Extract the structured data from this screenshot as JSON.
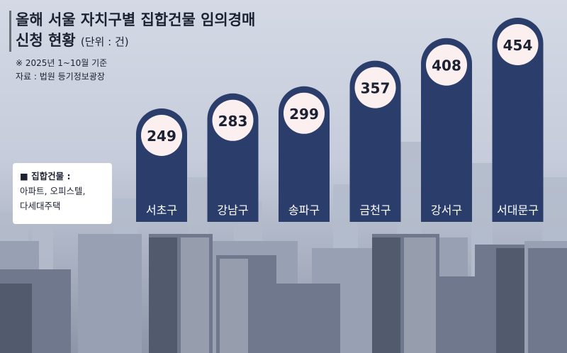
{
  "header": {
    "title_line1": "올해 서울 자치구별 집합건물 임의경매",
    "title_line2": "신청 현황",
    "unit": "(단위 : 건)",
    "note_period": "※ 2025년 1~10월 기준",
    "note_source": "자료 : 법원 등기정보광장"
  },
  "legend": {
    "title": "■ 집합건물 :",
    "line1": "아파트, 오피스텔,",
    "line2": "다세대주택"
  },
  "colors": {
    "bar": "#2b3d6b",
    "label_circle": "#fbeff0",
    "text": "#1c2232"
  },
  "chart_data": {
    "type": "bar",
    "title": "올해 서울 자치구별 집합건물 임의경매 신청 현황",
    "categories": [
      "서초구",
      "강남구",
      "송파구",
      "금천구",
      "강서구",
      "서대문구"
    ],
    "values": [
      249,
      283,
      299,
      357,
      408,
      454
    ],
    "unit": "(단위 : 건)",
    "ylim": [
      0,
      500
    ],
    "grid": false,
    "legend": "none"
  }
}
